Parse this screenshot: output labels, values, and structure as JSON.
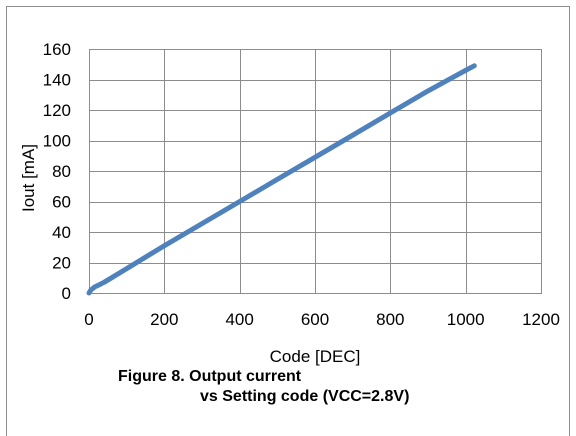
{
  "caption": {
    "line1": "Figure 8.  Output current",
    "line2": "vs Setting code (VCC=2.8V)"
  },
  "chart_data": {
    "type": "line",
    "title": "",
    "xlabel": "Code [DEC]",
    "ylabel": "Iout  [mA]",
    "xlim": [
      0,
      1200
    ],
    "ylim": [
      0,
      160
    ],
    "xticks": [
      0,
      200,
      400,
      600,
      800,
      1000,
      1200
    ],
    "yticks": [
      0,
      20,
      40,
      60,
      80,
      100,
      120,
      140,
      160
    ],
    "grid": true,
    "legend": "none",
    "series": [
      {
        "color": "#4f81bd",
        "x": [
          0,
          5,
          10,
          15,
          20,
          40,
          100,
          200,
          300,
          400,
          500,
          600,
          700,
          800,
          900,
          1000,
          1023
        ],
        "y": [
          0,
          2,
          3,
          4,
          4.5,
          7,
          16,
          31,
          45.5,
          60,
          74.5,
          89,
          103.5,
          118,
          132.5,
          146,
          149
        ]
      }
    ]
  }
}
